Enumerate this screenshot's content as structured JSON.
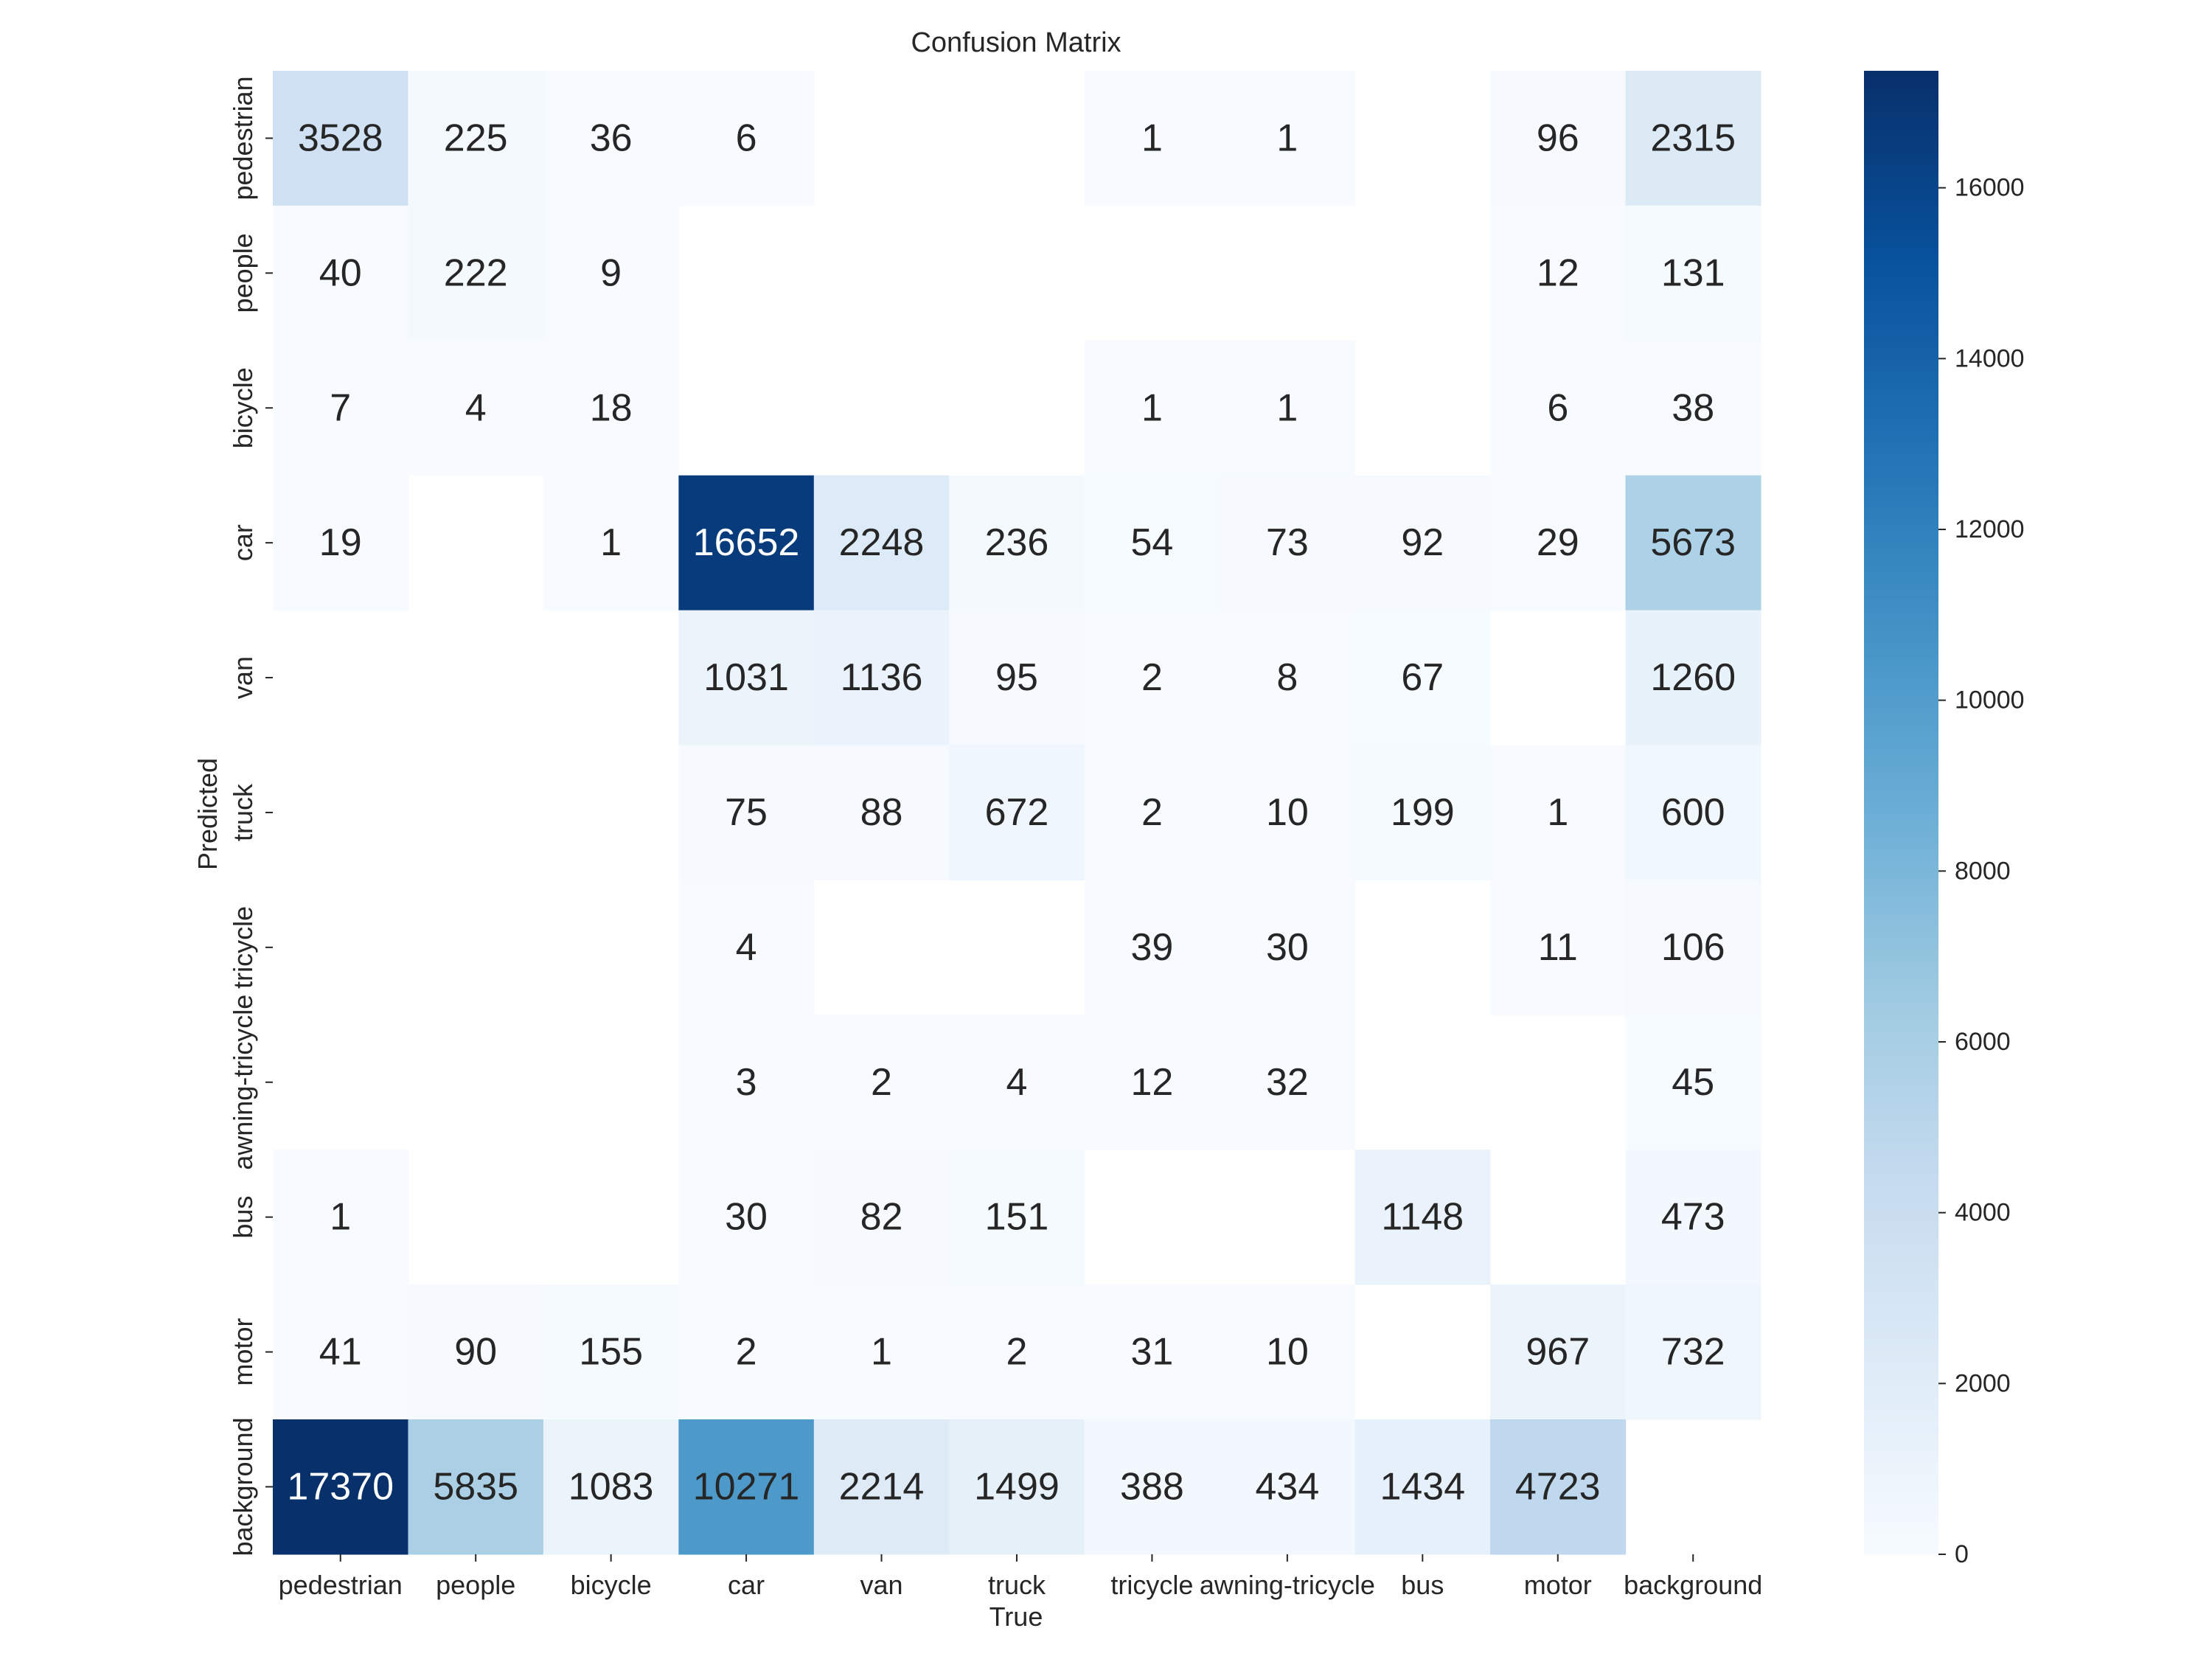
{
  "chart_data": {
    "type": "heatmap",
    "title": "Confusion Matrix",
    "xlabel": "True",
    "ylabel": "Predicted",
    "x_categories": [
      "pedestrian",
      "people",
      "bicycle",
      "car",
      "van",
      "truck",
      "tricycle",
      "awning-tricycle",
      "bus",
      "motor",
      "background"
    ],
    "y_categories": [
      "pedestrian",
      "people",
      "bicycle",
      "car",
      "van",
      "truck",
      "tricycle",
      "awning-tricycle",
      "bus",
      "motor",
      "background"
    ],
    "values": [
      [
        3528,
        225,
        36,
        6,
        null,
        null,
        1,
        1,
        null,
        96,
        2315
      ],
      [
        40,
        222,
        9,
        null,
        null,
        null,
        null,
        null,
        null,
        12,
        131
      ],
      [
        7,
        4,
        18,
        null,
        null,
        null,
        1,
        1,
        null,
        6,
        38
      ],
      [
        19,
        null,
        1,
        16652,
        2248,
        236,
        54,
        73,
        92,
        29,
        5673
      ],
      [
        null,
        null,
        null,
        1031,
        1136,
        95,
        2,
        8,
        67,
        null,
        1260
      ],
      [
        null,
        null,
        null,
        75,
        88,
        672,
        2,
        10,
        199,
        1,
        600
      ],
      [
        null,
        null,
        null,
        4,
        null,
        null,
        39,
        30,
        null,
        11,
        106
      ],
      [
        null,
        null,
        null,
        3,
        2,
        4,
        12,
        32,
        null,
        null,
        45
      ],
      [
        1,
        null,
        null,
        30,
        82,
        151,
        null,
        null,
        1148,
        null,
        473
      ],
      [
        41,
        90,
        155,
        2,
        1,
        2,
        31,
        10,
        null,
        967,
        732
      ],
      [
        17370,
        5835,
        1083,
        10271,
        2214,
        1499,
        388,
        434,
        1434,
        4723,
        null
      ]
    ],
    "colormap": "Blues",
    "color_range": [
      0,
      17370
    ],
    "colorbar_ticks": [
      "0",
      "2000",
      "4000",
      "6000",
      "8000",
      "10000",
      "12000",
      "14000",
      "16000"
    ],
    "colorbar_tick_values": [
      0,
      2000,
      4000,
      6000,
      8000,
      10000,
      12000,
      14000,
      16000
    ]
  }
}
